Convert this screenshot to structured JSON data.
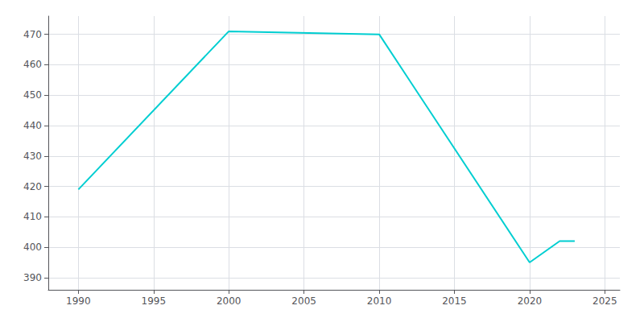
{
  "chart_data": {
    "type": "line",
    "x": [
      1990,
      2000,
      2010,
      2020,
      2022,
      2023
    ],
    "values": [
      419,
      471,
      470,
      395,
      402,
      402
    ],
    "color": "#00CED1",
    "xlim": [
      1988,
      2026
    ],
    "ylim": [
      386,
      476
    ],
    "xticks": [
      1990,
      1995,
      2000,
      2005,
      2010,
      2015,
      2020,
      2025
    ],
    "yticks": [
      390,
      400,
      410,
      420,
      430,
      440,
      450,
      460,
      470
    ],
    "grid": true
  }
}
